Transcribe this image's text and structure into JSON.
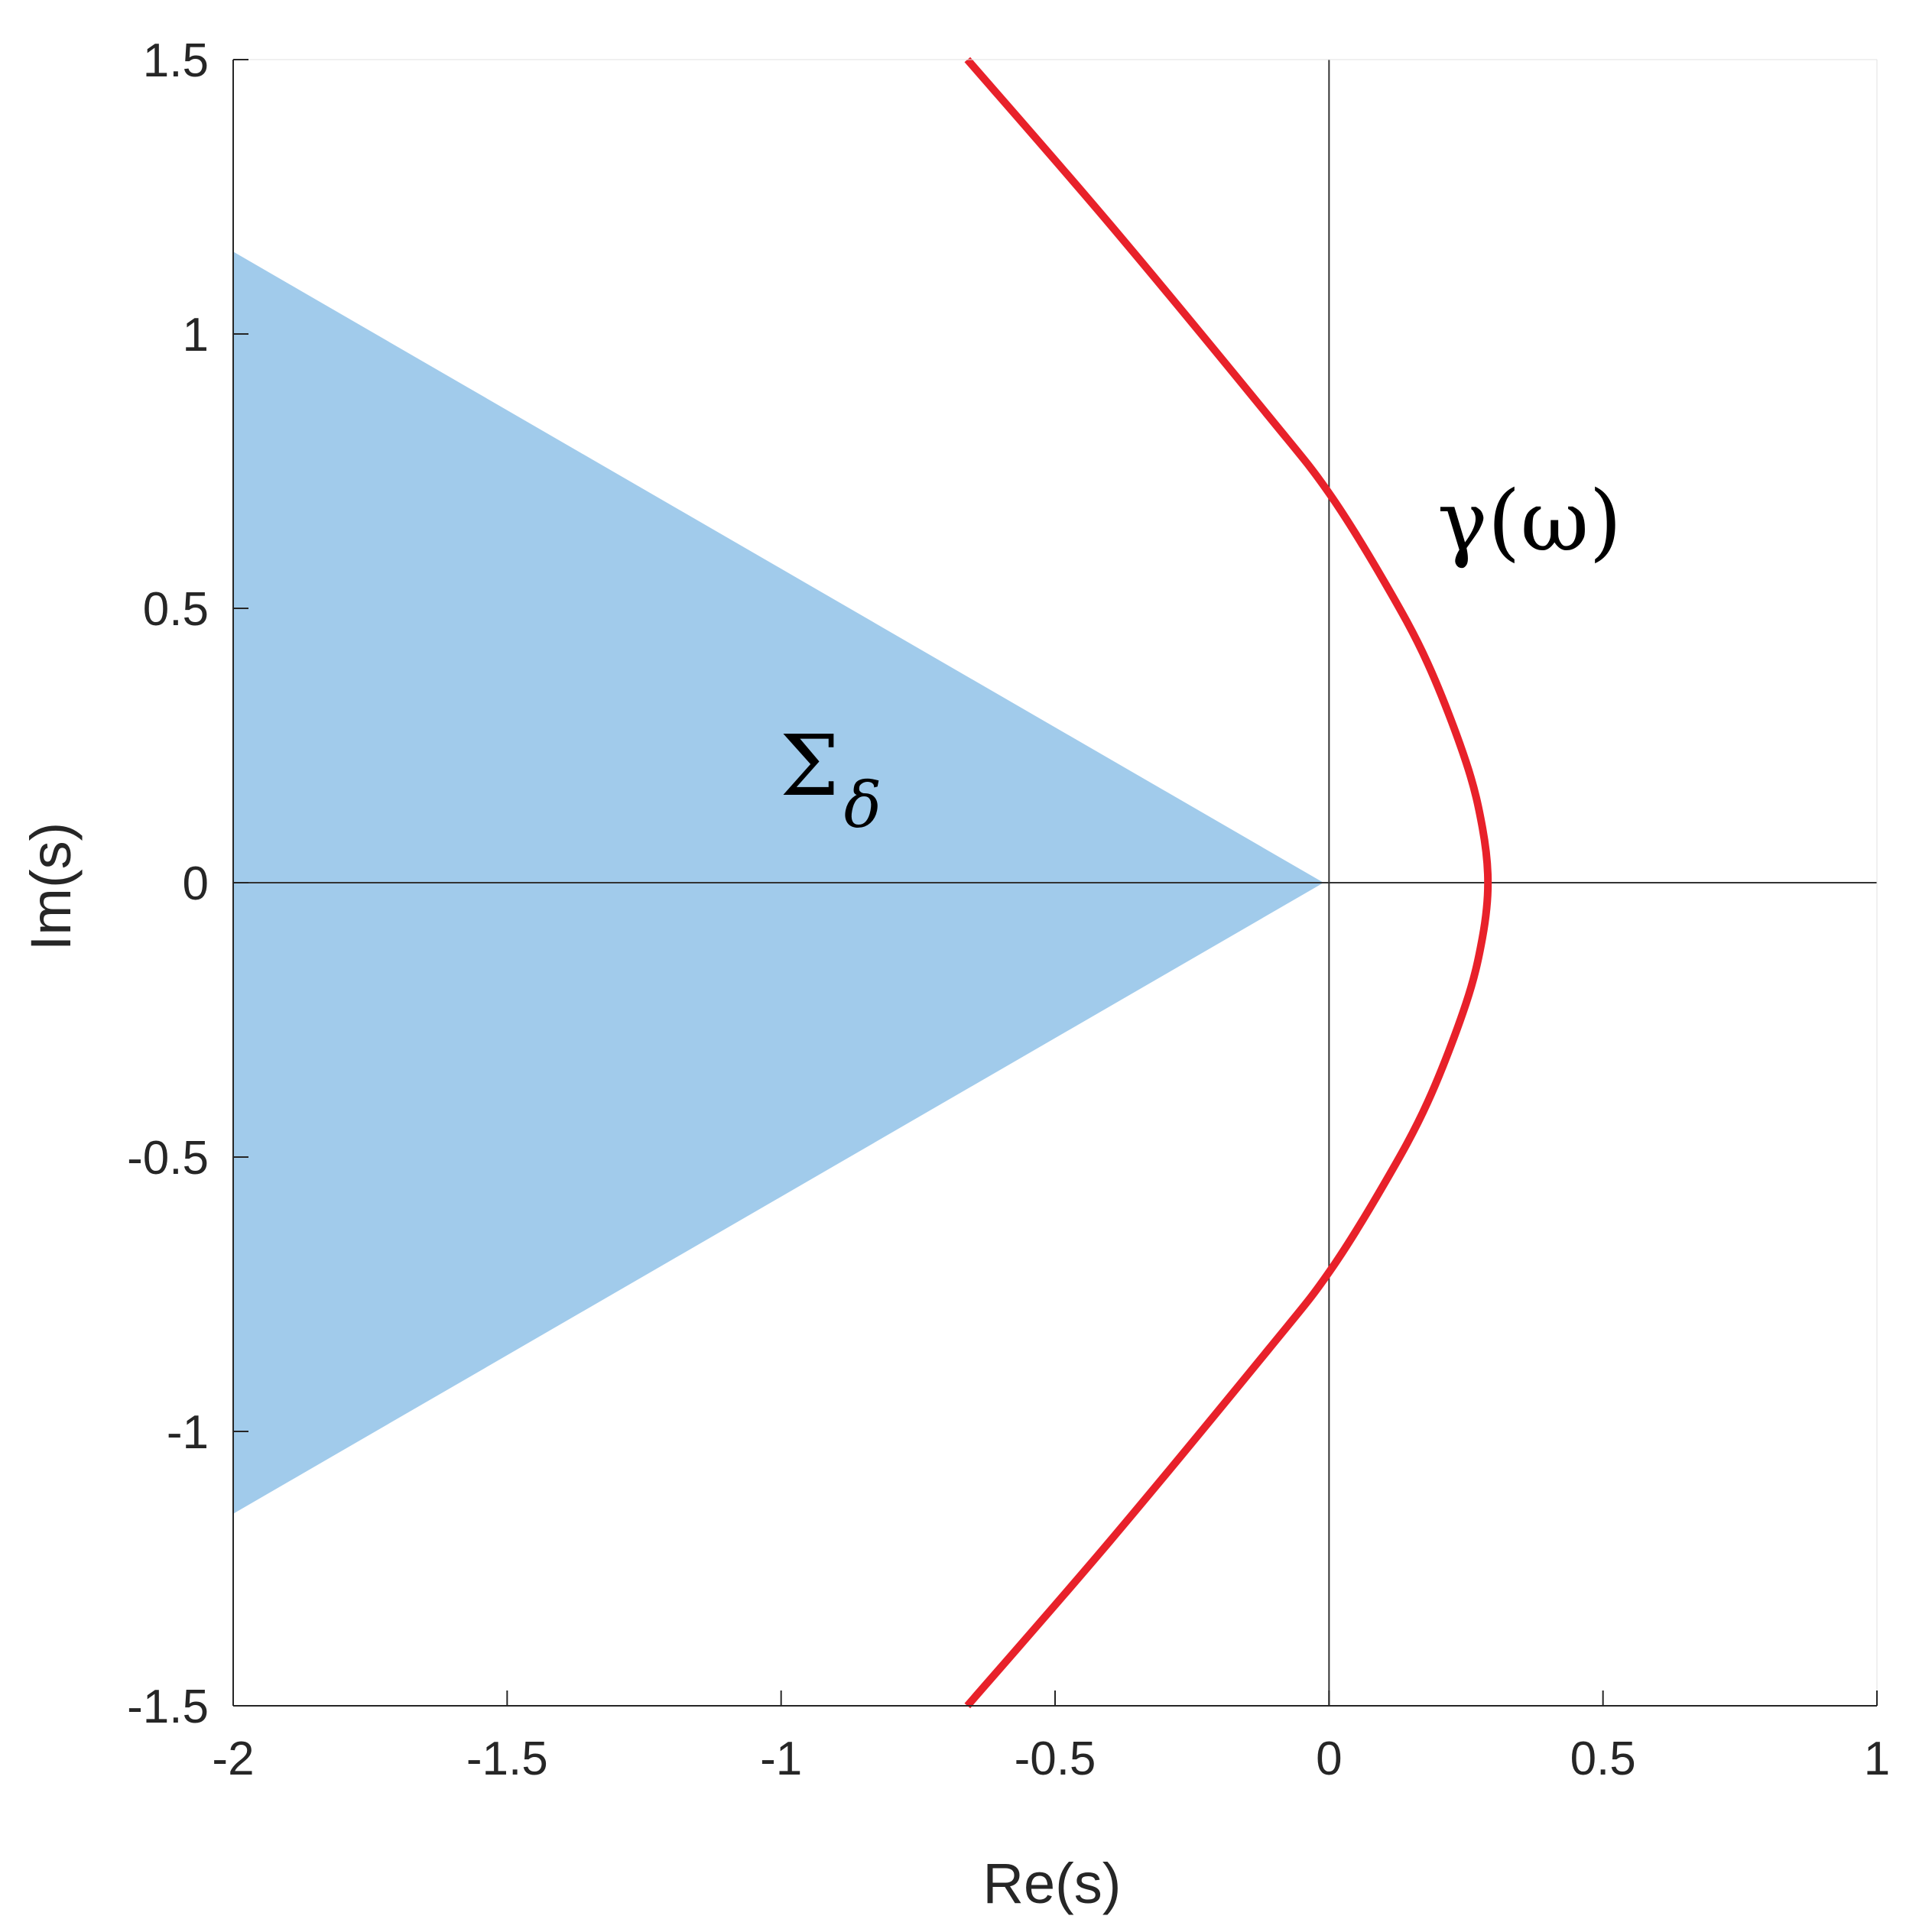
{
  "chart_data": {
    "type": "line",
    "xlabel": "Re(s)",
    "ylabel": "Im(s)",
    "xlim": [
      -2,
      1
    ],
    "ylim": [
      -1.5,
      1.5
    ],
    "x_ticks": [
      -2,
      -1.5,
      -1,
      -0.5,
      0,
      0.5,
      1
    ],
    "x_tick_labels": [
      "-2",
      "-1.5",
      "-1",
      "-0.5",
      "0",
      "0.5",
      "1"
    ],
    "y_ticks": [
      -1.5,
      -1,
      -0.5,
      0,
      0.5,
      1,
      1.5
    ],
    "y_tick_labels": [
      "-1.5",
      "-1",
      "-0.5",
      "0",
      "0.5",
      "1",
      "1.5"
    ],
    "grid": false,
    "reference_lines": {
      "x": 0,
      "y": 0
    },
    "region": {
      "label_main": "Σ",
      "label_sub": "δ",
      "polygon": [
        [
          -2,
          1.15
        ],
        [
          -0.01,
          0
        ],
        [
          -2,
          -1.15
        ]
      ],
      "color": "#a1cbeb"
    },
    "curve": {
      "label": "γ(ω)",
      "color": "#e8212a",
      "points": [
        [
          -0.66,
          1.5
        ],
        [
          -0.4,
          1.2
        ],
        [
          -0.11,
          0.85
        ],
        [
          0.0,
          0.71
        ],
        [
          0.1,
          0.55
        ],
        [
          0.18,
          0.4
        ],
        [
          0.25,
          0.22
        ],
        [
          0.28,
          0.1
        ],
        [
          0.29,
          0.0
        ],
        [
          0.28,
          -0.1
        ],
        [
          0.25,
          -0.22
        ],
        [
          0.18,
          -0.4
        ],
        [
          0.1,
          -0.55
        ],
        [
          0.0,
          -0.71
        ],
        [
          -0.11,
          -0.85
        ],
        [
          -0.4,
          -1.2
        ],
        [
          -0.66,
          -1.5
        ]
      ]
    }
  }
}
